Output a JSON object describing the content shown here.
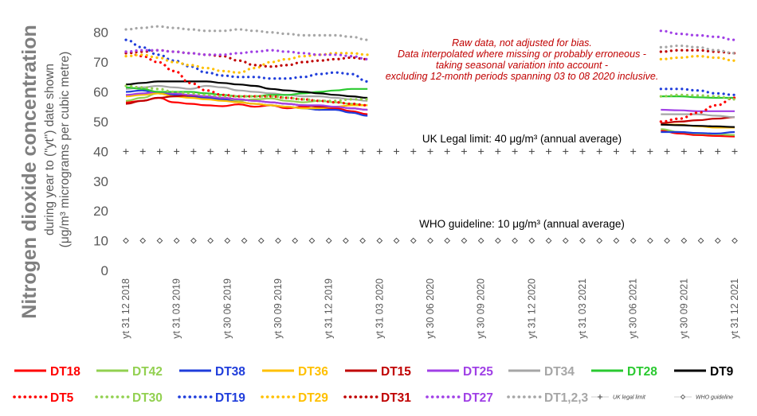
{
  "chart_data": {
    "type": "line",
    "ylabel_main": "Nitrogen dioxide concentration",
    "ylabel_sub1": "during year to (\"yt\") date shown",
    "ylabel_sub2": "(μg/m³ micrograms per cubic metre)",
    "ylim": [
      0,
      85
    ],
    "yticks": [
      "0",
      "10",
      "20",
      "30",
      "40",
      "50",
      "60",
      "70",
      "80"
    ],
    "x_range": [
      "2018-12-31",
      "2021-12-31"
    ],
    "xtick_labels": [
      "yt 31 12 2018",
      "yt 31 03 2019",
      "yt 30 06 2019",
      "yt 30 09 2019",
      "yt 31 12 2019",
      "yt 31 03 2020",
      "yt 30 06 2020",
      "yt 30 09 2020",
      "yt 31 12 2020",
      "yt 31 03 2021",
      "yt 30 06 2021",
      "yt 30 09 2021",
      "yt 31 12 2021"
    ],
    "note_lines": [
      "Raw data, not adjusted for bias.",
      "Data interpolated where missing or probably erroneous -",
      "taking seasonal variation into account -",
      "excluding 12-month periods spanning 03 to 08 2020 inclusive."
    ],
    "reference_lines": [
      {
        "name": "UK legal limit",
        "value": 40,
        "label": "UK Legal limit: 40 μg/m³ (annual average)",
        "color": "#404040"
      },
      {
        "name": "WHO guideline",
        "value": 10,
        "label": "WHO guideline: 10 μg/m³ (annual average)",
        "color": "#404040"
      }
    ],
    "segments": [
      {
        "start": "2018-12-31",
        "end": "2020-03-10"
      },
      {
        "start": "2021-08-20",
        "end": "2021-12-31"
      }
    ],
    "series": [
      {
        "name": "DT18",
        "color": "#ff0000",
        "style": "solid",
        "seg1": [
          56.5,
          57,
          58,
          56.5,
          56,
          55.5,
          55.2,
          55.8,
          55,
          55.5,
          54.5,
          55,
          54,
          54.5,
          53.5,
          52.5
        ],
        "seg2": [
          47,
          46,
          45.5,
          45.2,
          45
        ]
      },
      {
        "name": "DT42",
        "color": "#92d050",
        "style": "solid",
        "seg1": [
          57,
          58,
          59.5,
          59,
          58.5,
          58,
          57.5,
          57,
          57.5,
          57.8,
          57,
          56.5,
          57,
          56.5,
          56,
          55.5
        ],
        "seg2": [
          47.5,
          46.5,
          46,
          45.8,
          45.5
        ]
      },
      {
        "name": "DT38",
        "color": "#1f3ddb",
        "style": "solid",
        "seg1": [
          60,
          60.5,
          59.5,
          59,
          58.5,
          58,
          57.5,
          56.5,
          56,
          55.5,
          55,
          54.5,
          54,
          54,
          53,
          52
        ],
        "seg2": [
          46.5,
          46.5,
          46.2,
          46,
          46.5
        ]
      },
      {
        "name": "DT36",
        "color": "#ffc000",
        "style": "solid",
        "seg1": [
          58.5,
          59,
          59.5,
          58.5,
          58,
          57.5,
          57,
          56.5,
          56,
          55.5,
          55,
          54.5,
          54.5,
          55,
          55.5,
          55.5
        ],
        "seg2": [
          49,
          49,
          48.5,
          48,
          48
        ]
      },
      {
        "name": "DT15",
        "color": "#c00000",
        "style": "solid",
        "seg1": [
          56,
          57,
          58,
          58.5,
          58.8,
          58.5,
          58,
          57.5,
          57,
          56.5,
          56,
          55.5,
          55,
          55,
          54.5,
          54
        ],
        "seg2": [
          49.5,
          50,
          50.5,
          51,
          51.5
        ]
      },
      {
        "name": "DT25",
        "color": "#a040e6",
        "style": "solid",
        "seg1": [
          59,
          59.5,
          60,
          59.5,
          59,
          58.5,
          58,
          57.5,
          57,
          56.5,
          56,
          55.5,
          55.5,
          55,
          54.5,
          54
        ],
        "seg2": [
          54,
          53.8,
          53.5,
          53.5,
          53.5
        ]
      },
      {
        "name": "DT34",
        "color": "#a6a6a6",
        "style": "solid",
        "seg1": [
          61,
          61.5,
          62,
          61.5,
          61,
          62,
          61.5,
          60.5,
          60,
          59.5,
          59,
          58.5,
          58.5,
          58,
          57.5,
          57
        ],
        "seg2": [
          52.5,
          52.5,
          52.5,
          52,
          51.5
        ]
      },
      {
        "name": "DT28",
        "color": "#2ac930",
        "style": "solid",
        "seg1": [
          61.5,
          61,
          60,
          60,
          60,
          59.5,
          59,
          58.5,
          58.5,
          59,
          59,
          59.5,
          60,
          60.5,
          61,
          61
        ],
        "seg2": [
          58.5,
          58.5,
          58.2,
          58,
          58
        ]
      },
      {
        "name": "DT9",
        "color": "#000000",
        "style": "solid",
        "seg1": [
          62.5,
          63,
          63.5,
          63.5,
          63.5,
          63.5,
          63,
          62.5,
          62,
          61,
          60.5,
          60,
          59.5,
          59,
          58.5,
          58
        ],
        "seg2": [
          49,
          48.8,
          48.6,
          48.4,
          48.2
        ]
      },
      {
        "name": "DT5",
        "color": "#ff0000",
        "style": "dotted",
        "seg1": [
          73.5,
          72,
          70,
          67,
          63,
          60.5,
          59,
          58.5,
          58.5,
          58.5,
          58,
          57.5,
          57,
          56.5,
          56,
          55.5
        ],
        "seg2": [
          50,
          51,
          53,
          55.5,
          58
        ]
      },
      {
        "name": "DT30",
        "color": "#92d050",
        "style": "dotted",
        "seg1": [
          62,
          61.5,
          61,
          60,
          59.5,
          59,
          58.5,
          58.5,
          58.5,
          58.5,
          58,
          57.5,
          57,
          57,
          57.5,
          57.5
        ],
        "seg2": [
          58.5,
          59,
          58.8,
          58.5,
          57.5
        ]
      },
      {
        "name": "DT19",
        "color": "#1f3ddb",
        "style": "dotted",
        "seg1": [
          77.5,
          75,
          72.5,
          70.5,
          68.5,
          66.5,
          65.5,
          65,
          65,
          64.5,
          64.5,
          65,
          66,
          66.5,
          66,
          63.5
        ],
        "seg2": [
          61,
          61,
          60.5,
          59.5,
          59
        ]
      },
      {
        "name": "DT29",
        "color": "#ffc000",
        "style": "dotted",
        "seg1": [
          72,
          72.5,
          71.5,
          70,
          69,
          68,
          67,
          66.5,
          68,
          70,
          71,
          72,
          72.5,
          73,
          73,
          72.5
        ],
        "seg2": [
          71,
          71.5,
          72,
          71.5,
          70.5
        ]
      },
      {
        "name": "DT31",
        "color": "#c00000",
        "style": "dotted",
        "seg1": [
          73,
          73.5,
          74,
          73.5,
          73,
          72.5,
          72,
          70.5,
          69,
          68.5,
          69,
          70,
          70.5,
          71,
          71.5,
          71
        ],
        "seg2": [
          73.5,
          74,
          74,
          73.5,
          73
        ]
      },
      {
        "name": "DT27",
        "color": "#a040e6",
        "style": "dotted",
        "seg1": [
          73.5,
          74,
          74,
          73.5,
          73,
          72.5,
          72.5,
          73,
          73.5,
          74,
          73.5,
          73,
          72.5,
          72.5,
          72,
          71
        ],
        "seg2": [
          80.5,
          79.5,
          79,
          78.5,
          77.5
        ]
      },
      {
        "name": "DT1,2,3",
        "color": "#a6a6a6",
        "style": "dotted",
        "seg1": [
          81,
          81.5,
          82,
          81.5,
          81,
          80.5,
          80.5,
          81,
          80.5,
          80,
          79.5,
          79,
          79,
          79,
          78.5,
          77.5
        ],
        "seg2": [
          75,
          75.5,
          75,
          74,
          73
        ]
      }
    ],
    "legend": {
      "placement": "bottom",
      "rows": [
        [
          "DT18",
          "DT42",
          "DT38",
          "DT36",
          "DT15",
          "DT25",
          "DT34",
          "DT28",
          "DT9"
        ],
        [
          "DT5",
          "DT30",
          "DT19",
          "DT29",
          "DT31",
          "DT27",
          "DT1,2,3",
          "UK legal limit",
          "WHO guideline"
        ]
      ]
    },
    "grid": false
  }
}
